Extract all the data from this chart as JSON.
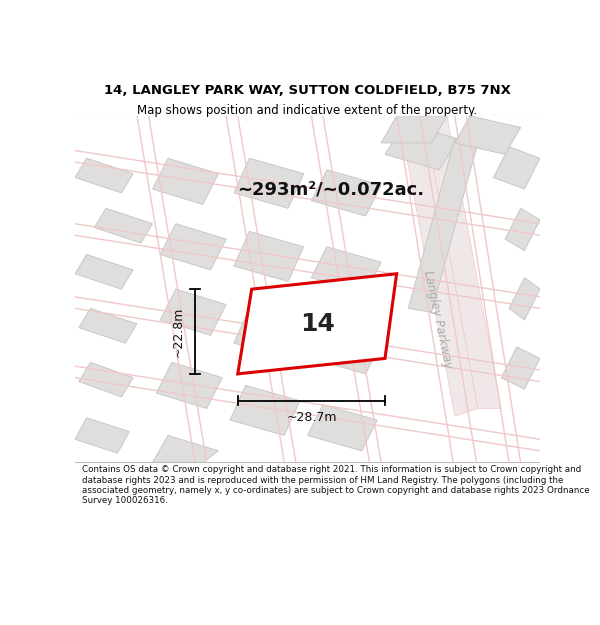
{
  "title": "14, LANGLEY PARK WAY, SUTTON COLDFIELD, B75 7NX",
  "subtitle": "Map shows position and indicative extent of the property.",
  "area_text": "~293m²/~0.072ac.",
  "plot_number": "14",
  "dim_width": "~28.7m",
  "dim_height": "~22.8m",
  "footer": "Contains OS data © Crown copyright and database right 2021. This information is subject to Crown copyright and database rights 2023 and is reproduced with the permission of HM Land Registry. The polygons (including the associated geometry, namely x, y co-ordinates) are subject to Crown copyright and database rights 2023 Ordnance Survey 100026316.",
  "bg_color": "#f7f4f2",
  "road_color": "#f0c8c8",
  "road_fill": "#f7f4f2",
  "plot_edge_color": "#dd0000",
  "building_fill": "#e0dedd",
  "building_edge": "#c8c8c8",
  "street_label_color": "#aaaaaa",
  "title_fontsize": 9.5,
  "subtitle_fontsize": 8.5,
  "area_fontsize": 13,
  "plot_label_fontsize": 18,
  "dim_fontsize": 9,
  "footer_fontsize": 6.3
}
